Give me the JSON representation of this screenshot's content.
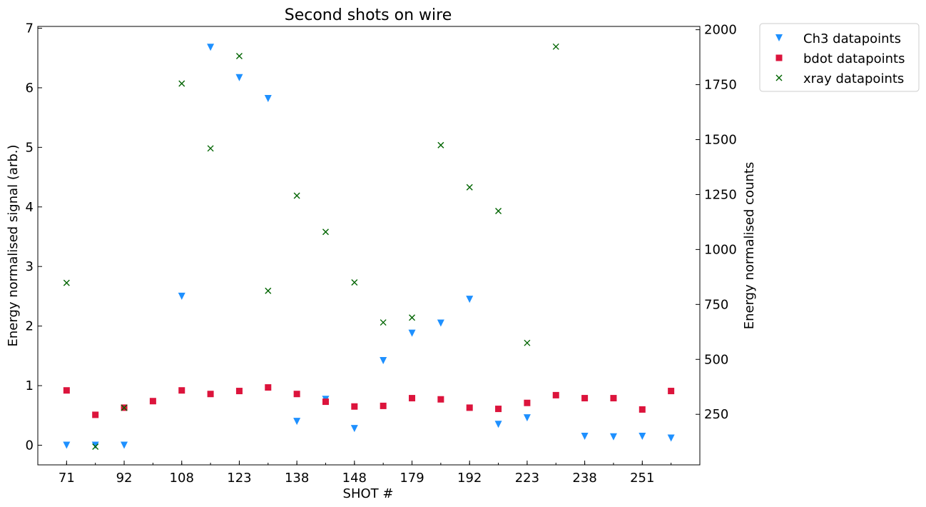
{
  "chart_data": {
    "type": "scatter",
    "title": "Second shots on wire",
    "xlabel": "SHOT #",
    "ylabel": "Energy normalised signal (arb.)",
    "ylabel_right": "Energy normalised counts",
    "x_tick_labels": [
      "71",
      "92",
      "108",
      "123",
      "138",
      "148",
      "179",
      "192",
      "223",
      "238",
      "251"
    ],
    "x_tick_positions": [
      0,
      2,
      4,
      6,
      8,
      10,
      12,
      14,
      16,
      18,
      20
    ],
    "xlim": [
      -1,
      22
    ],
    "ylim": [
      -0.33,
      7.03
    ],
    "yticks": [
      0,
      1,
      2,
      3,
      4,
      5,
      6,
      7
    ],
    "ylim_right": [
      20,
      2015
    ],
    "yticks_right": [
      250,
      500,
      750,
      1000,
      1250,
      1500,
      1750,
      2000
    ],
    "legend_position": "outside-top-right",
    "series": [
      {
        "name": "Ch3 datapoints",
        "axis": "left",
        "marker": "triangle-down",
        "color": "#1e90ff",
        "points": [
          [
            0,
            0.0
          ],
          [
            1,
            0.0
          ],
          [
            2,
            0.0
          ],
          [
            4,
            2.5
          ],
          [
            5,
            6.68
          ],
          [
            6,
            6.17
          ],
          [
            7,
            5.82
          ],
          [
            8,
            0.4
          ],
          [
            9,
            0.77
          ],
          [
            10,
            0.28
          ],
          [
            11,
            1.42
          ],
          [
            12,
            1.88
          ],
          [
            13,
            2.05
          ],
          [
            14,
            2.45
          ],
          [
            15,
            0.35
          ],
          [
            16,
            0.46
          ],
          [
            18,
            0.15
          ],
          [
            19,
            0.14
          ],
          [
            20,
            0.15
          ],
          [
            21,
            0.12
          ]
        ]
      },
      {
        "name": "bdot datapoints",
        "axis": "left",
        "marker": "square",
        "color": "#dc143c",
        "points": [
          [
            0,
            0.92
          ],
          [
            1,
            0.51
          ],
          [
            2,
            0.63
          ],
          [
            3,
            0.74
          ],
          [
            4,
            0.92
          ],
          [
            5,
            0.86
          ],
          [
            6,
            0.91
          ],
          [
            7,
            0.97
          ],
          [
            8,
            0.86
          ],
          [
            9,
            0.73
          ],
          [
            10,
            0.65
          ],
          [
            11,
            0.66
          ],
          [
            12,
            0.79
          ],
          [
            13,
            0.77
          ],
          [
            14,
            0.63
          ],
          [
            15,
            0.61
          ],
          [
            16,
            0.71
          ],
          [
            17,
            0.84
          ],
          [
            18,
            0.79
          ],
          [
            19,
            0.79
          ],
          [
            20,
            0.6
          ],
          [
            21,
            0.91
          ]
        ]
      },
      {
        "name": "xray datapoints",
        "axis": "right",
        "marker": "x",
        "color": "#006400",
        "points": [
          [
            0,
            848
          ],
          [
            1,
            103
          ],
          [
            2,
            280
          ],
          [
            4,
            1755
          ],
          [
            5,
            1460
          ],
          [
            6,
            1880
          ],
          [
            7,
            812
          ],
          [
            8,
            1245
          ],
          [
            9,
            1080
          ],
          [
            10,
            850
          ],
          [
            11,
            668
          ],
          [
            12,
            690
          ],
          [
            13,
            1475
          ],
          [
            14,
            1283
          ],
          [
            15,
            1175
          ],
          [
            16,
            575
          ],
          [
            17,
            1923
          ]
        ]
      }
    ]
  }
}
